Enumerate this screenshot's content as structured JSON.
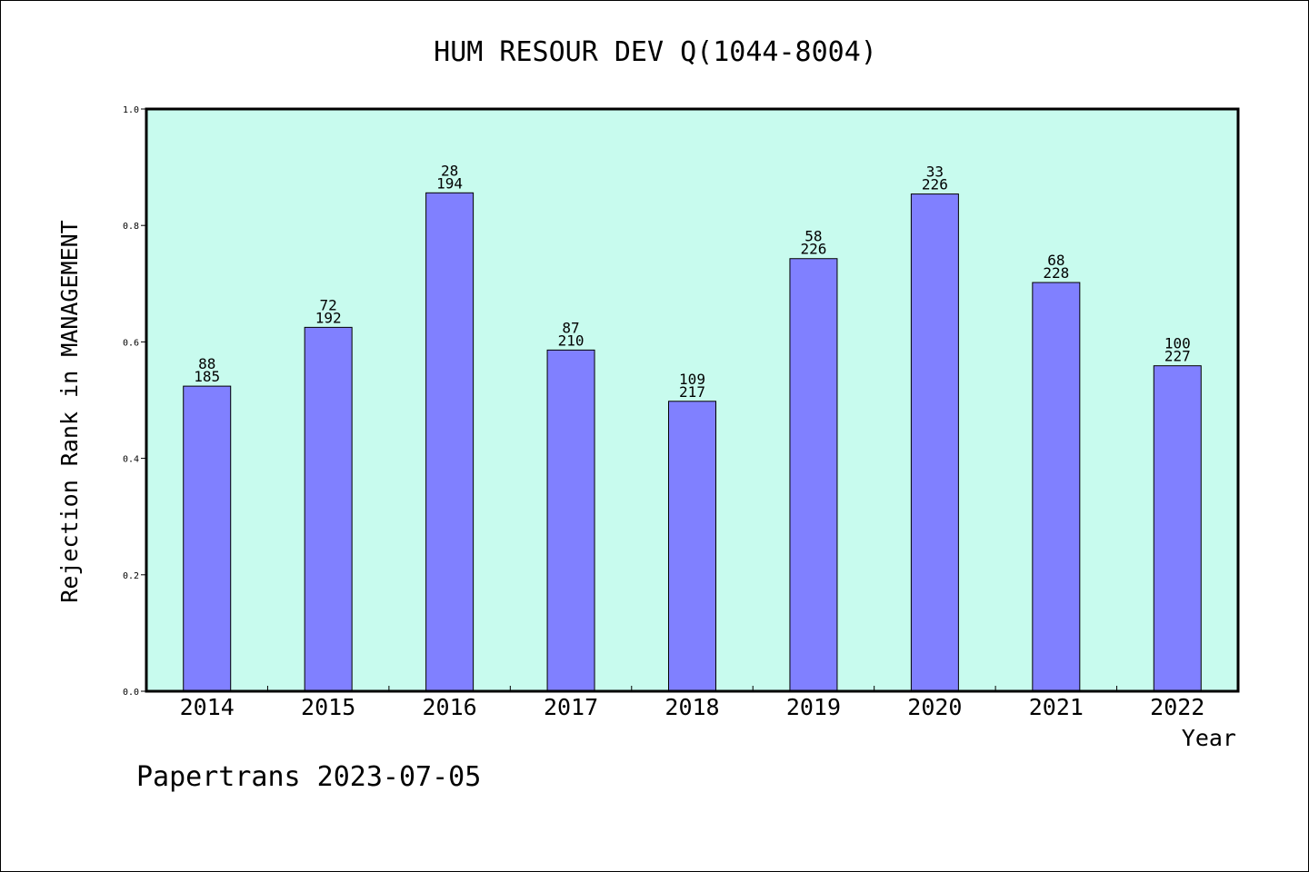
{
  "chart_data": {
    "type": "bar",
    "title": "HUM RESOUR DEV Q(1044-8004)",
    "xlabel": "Year",
    "ylabel": "Rejection Rank in MANAGEMENT",
    "ylim": [
      0,
      1
    ],
    "yticks": [
      "0.0",
      "0.2",
      "0.4",
      "0.6",
      "0.8",
      "1.0"
    ],
    "grid": false,
    "categories": [
      "2014",
      "2015",
      "2016",
      "2017",
      "2018",
      "2019",
      "2020",
      "2021",
      "2022"
    ],
    "values": [
      0.524,
      0.625,
      0.856,
      0.586,
      0.498,
      0.743,
      0.854,
      0.702,
      0.559
    ],
    "labels_top": [
      "88",
      "72",
      "28",
      "87",
      "109",
      "58",
      "33",
      "68",
      "100"
    ],
    "labels_bottom": [
      "185",
      "192",
      "194",
      "210",
      "217",
      "226",
      "226",
      "228",
      "227"
    ],
    "colors": {
      "plot_bg": "#c8fbee",
      "bar": "#8080ff",
      "bar_edge": "#000000"
    }
  },
  "footer": "Papertrans 2023-07-05"
}
